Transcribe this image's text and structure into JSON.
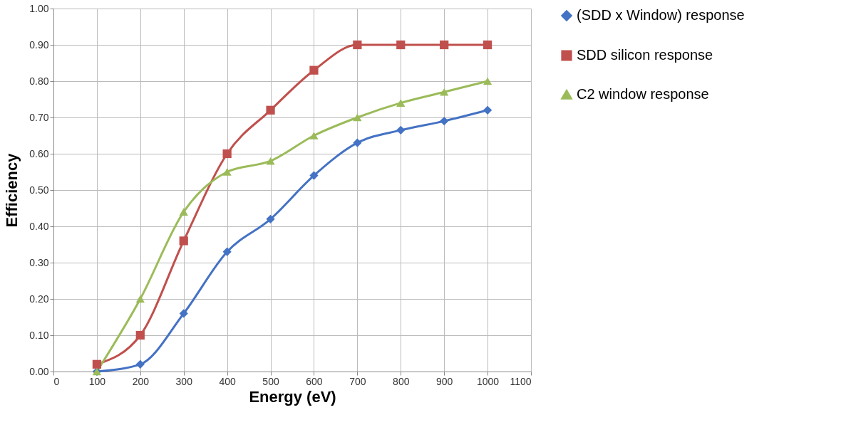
{
  "chart_data": {
    "type": "line",
    "xlabel": "Energy (eV)",
    "ylabel": "Efficiency",
    "x": [
      100,
      200,
      300,
      400,
      500,
      600,
      700,
      800,
      900,
      1000
    ],
    "series": [
      {
        "name": "(SDD x Window) response",
        "color": "#4472c4",
        "marker": "diamond",
        "values": [
          0.0,
          0.02,
          0.16,
          0.33,
          0.42,
          0.54,
          0.63,
          0.665,
          0.69,
          0.72
        ]
      },
      {
        "name": "SDD silicon response",
        "color": "#c0504d",
        "marker": "square",
        "values": [
          0.02,
          0.1,
          0.36,
          0.6,
          0.72,
          0.83,
          0.9,
          0.9,
          0.9,
          0.9
        ]
      },
      {
        "name": "C2 window response",
        "color": "#9bbb59",
        "marker": "triangle",
        "values": [
          0.0,
          0.2,
          0.44,
          0.55,
          0.58,
          0.65,
          0.7,
          0.74,
          0.77,
          0.8
        ]
      }
    ],
    "xlim": [
      0,
      1100
    ],
    "xticks": [
      0,
      100,
      200,
      300,
      400,
      500,
      600,
      700,
      800,
      900,
      1000,
      1100
    ],
    "ylim": [
      0,
      1
    ],
    "yticks": [
      {
        "value": 0,
        "label": "0.00"
      },
      {
        "value": 0.1,
        "label": "0.10"
      },
      {
        "value": 0.2,
        "label": "0.20"
      },
      {
        "value": 0.3,
        "label": "0.30"
      },
      {
        "value": 0.4,
        "label": "0.40"
      },
      {
        "value": 0.5,
        "label": "0.50"
      },
      {
        "value": 0.6,
        "label": "0.60"
      },
      {
        "value": 0.7,
        "label": "0.70"
      },
      {
        "value": 0.8,
        "label": "0.80"
      },
      {
        "value": 0.9,
        "label": "0.90"
      },
      {
        "value": 1,
        "label": "1.00"
      }
    ],
    "grid": true,
    "legend": "right",
    "line_style": "solid"
  }
}
